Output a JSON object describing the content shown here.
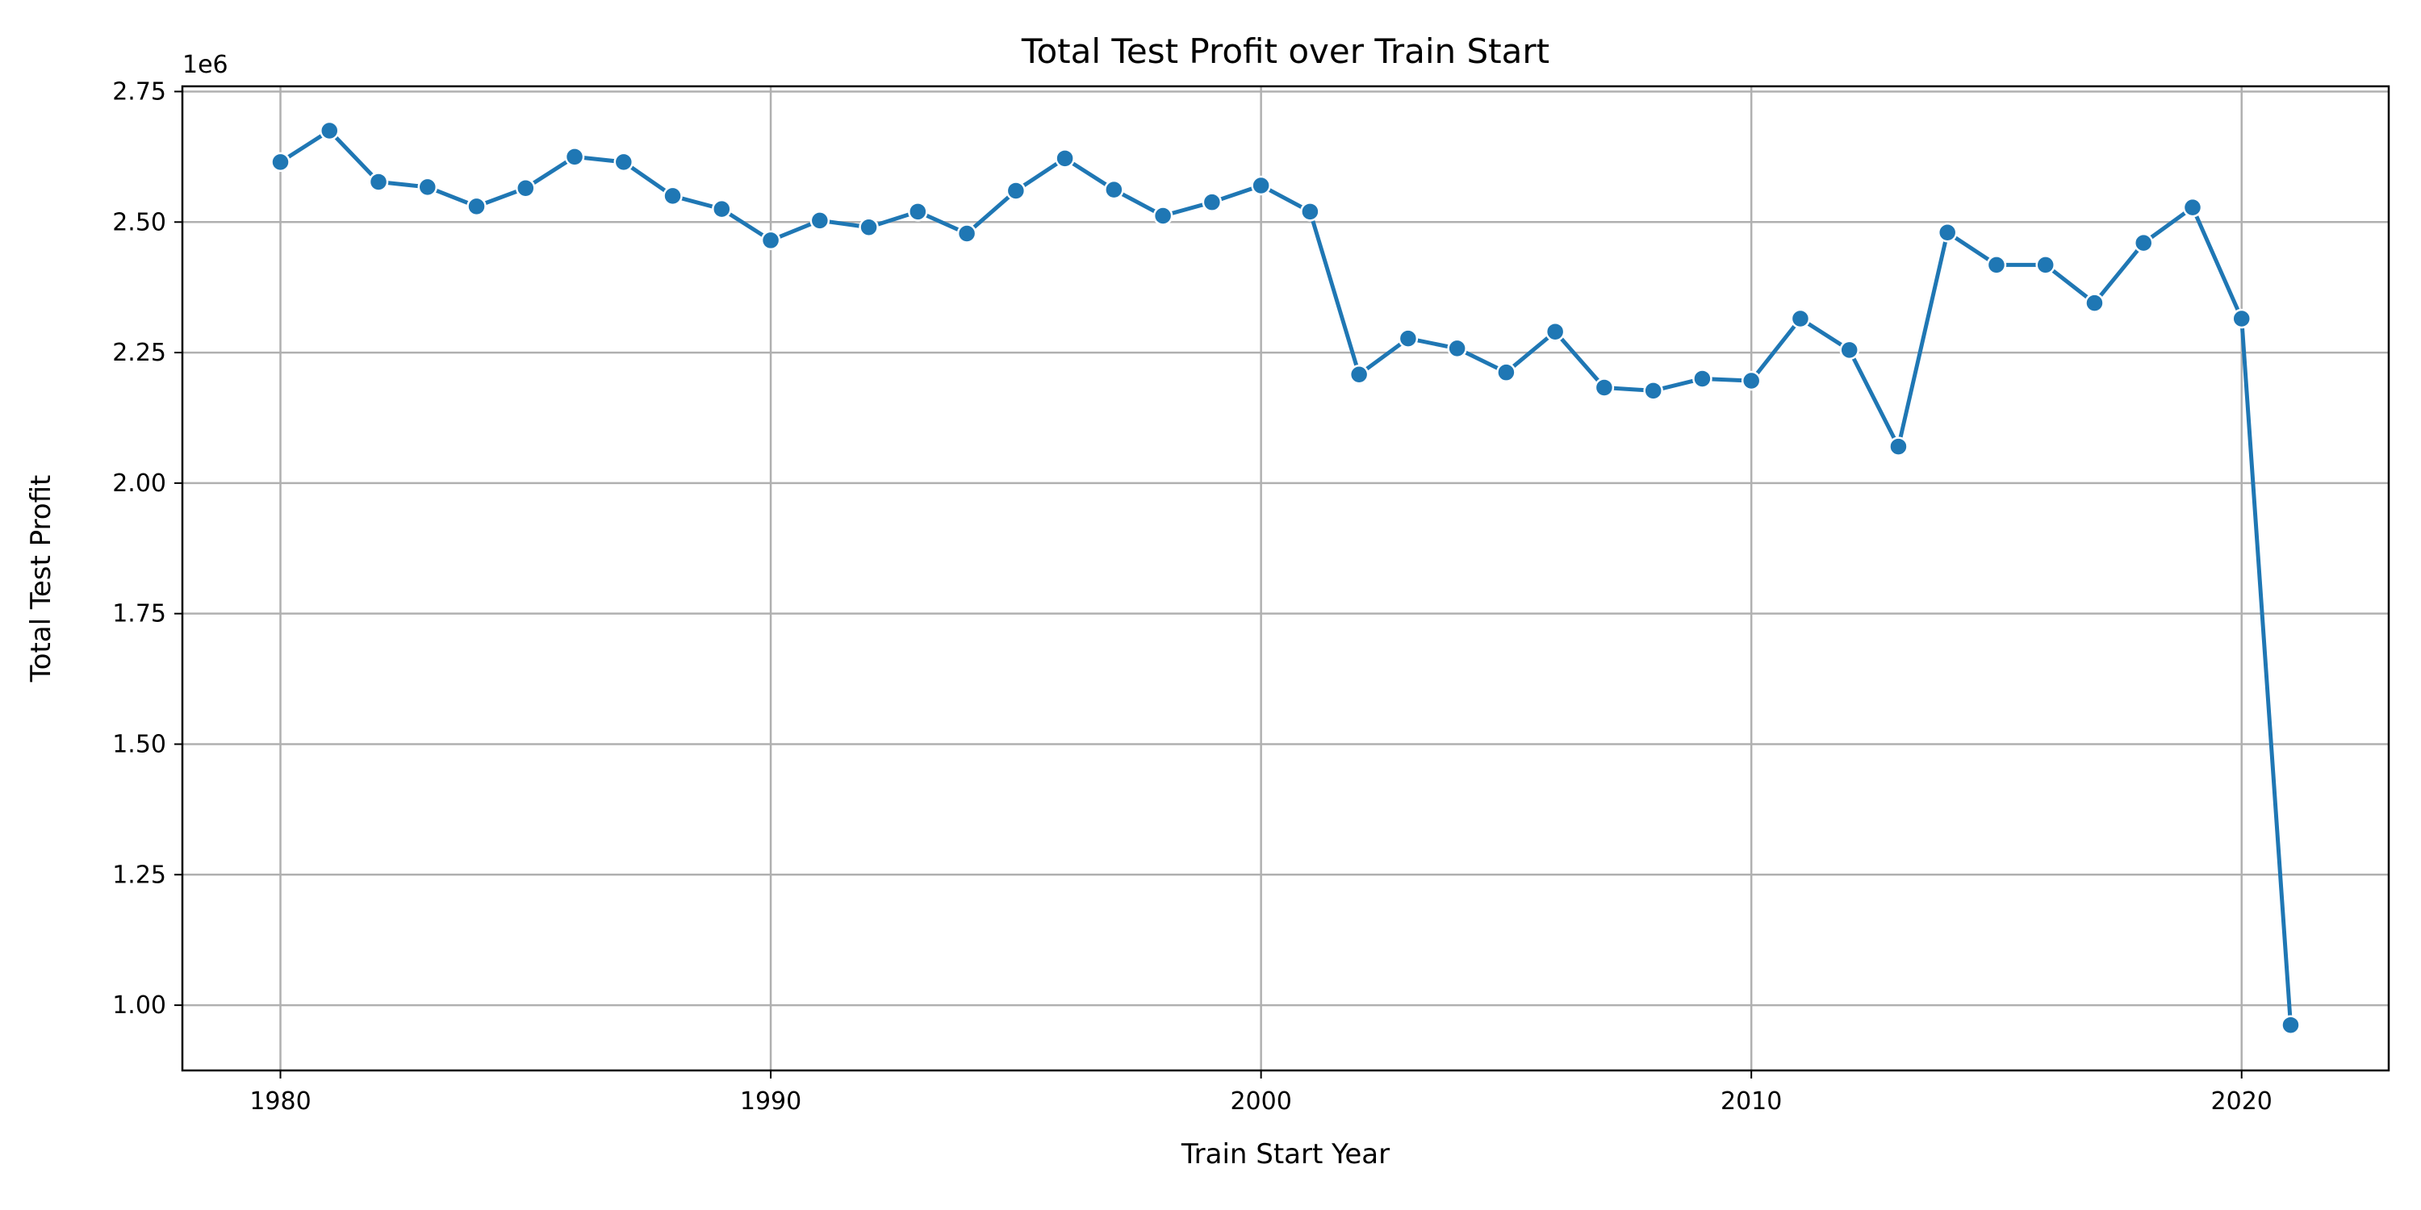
{
  "chart_data": {
    "type": "line",
    "title": "Total Test Profit over Train Start",
    "xlabel": "Train Start Year",
    "ylabel": "Total Test Profit",
    "y_offset_label": "1e6",
    "y_scale_factor": 1000000,
    "xlim": [
      1978,
      2023
    ],
    "ylim": [
      0.875,
      2.76
    ],
    "xticks": [
      1980,
      1990,
      2000,
      2010,
      2020
    ],
    "yticks": [
      1.0,
      1.25,
      1.5,
      1.75,
      2.0,
      2.25,
      2.5,
      2.75
    ],
    "ytick_labels": [
      "1.00",
      "1.25",
      "1.50",
      "1.75",
      "2.00",
      "2.25",
      "2.50",
      "2.75"
    ],
    "grid": true,
    "line_color": "#1f77b4",
    "marker": "circle",
    "series": [
      {
        "x": [
          1980,
          1981,
          1982,
          1983,
          1984,
          1985,
          1986,
          1987,
          1988,
          1989,
          1990,
          1991,
          1992,
          1993,
          1994,
          1995,
          1996,
          1997,
          1998,
          1999,
          2000,
          2001,
          2002,
          2003,
          2004,
          2005,
          2006,
          2007,
          2008,
          2009,
          2010,
          2011,
          2012,
          2013,
          2014,
          2015,
          2016,
          2017,
          2018,
          2019,
          2020,
          2021
        ],
        "values": [
          2.615,
          2.675,
          2.577,
          2.567,
          2.53,
          2.565,
          2.625,
          2.615,
          2.55,
          2.525,
          2.465,
          2.503,
          2.49,
          2.52,
          2.478,
          2.56,
          2.622,
          2.562,
          2.512,
          2.538,
          2.57,
          2.52,
          2.208,
          2.277,
          2.258,
          2.212,
          2.29,
          2.183,
          2.177,
          2.2,
          2.196,
          2.315,
          2.255,
          2.07,
          2.48,
          2.418,
          2.418,
          2.345,
          2.46,
          2.528,
          2.315,
          0.962
        ]
      }
    ]
  }
}
